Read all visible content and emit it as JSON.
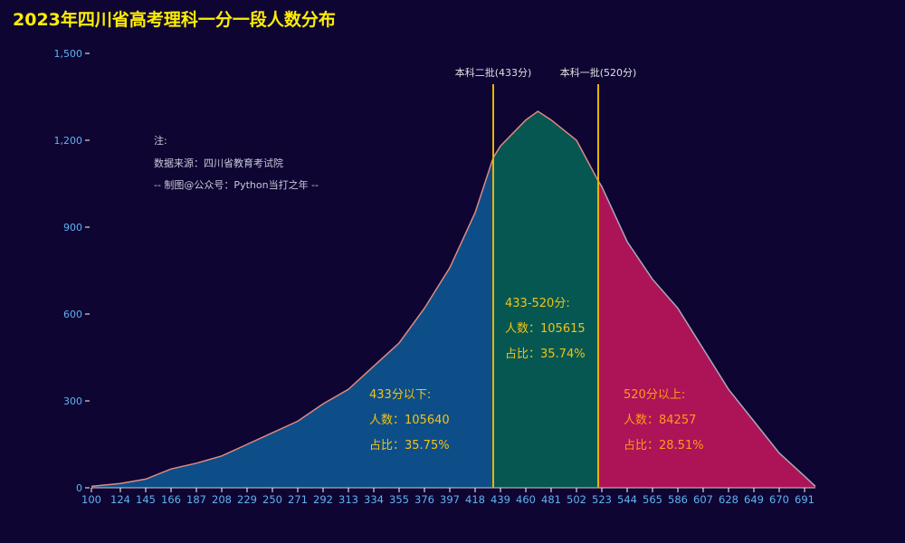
{
  "title": "2023年四川省高考理科一分一段人数分布",
  "notes": [
    "注:",
    "数据来源：四川省教育考试院",
    "-- 制图@公众号：Python当打之年 --"
  ],
  "chart_data": {
    "type": "area",
    "x": [
      100,
      124,
      145,
      166,
      187,
      208,
      229,
      250,
      271,
      292,
      313,
      334,
      355,
      376,
      397,
      418,
      433,
      439,
      460,
      470,
      481,
      502,
      520,
      523,
      544,
      565,
      586,
      607,
      628,
      649,
      670,
      691,
      700
    ],
    "values": [
      5,
      15,
      30,
      65,
      85,
      110,
      150,
      190,
      230,
      290,
      340,
      420,
      500,
      620,
      760,
      950,
      1140,
      1180,
      1270,
      1300,
      1270,
      1200,
      1060,
      1040,
      850,
      720,
      620,
      480,
      340,
      230,
      120,
      40,
      5
    ],
    "xticks": [
      "100",
      "124",
      "145",
      "166",
      "187",
      "208",
      "229",
      "250",
      "271",
      "292",
      "313",
      "334",
      "355",
      "376",
      "397",
      "418",
      "439",
      "460",
      "481",
      "502",
      "523",
      "544",
      "565",
      "586",
      "607",
      "628",
      "649",
      "670",
      "691"
    ],
    "yticks": [
      "0",
      "300",
      "600",
      "900",
      "1,200",
      "1,500"
    ],
    "yticks_values": [
      0,
      300,
      600,
      900,
      1200,
      1500
    ],
    "ylim": [
      0,
      1500
    ],
    "xlim": [
      100,
      700
    ],
    "grid": false,
    "mark_lines": [
      {
        "x": 433,
        "label": "本科二批(433分)"
      },
      {
        "x": 520,
        "label": "本科一批(520分)"
      }
    ],
    "regions": [
      {
        "from": 100,
        "to": 433,
        "color": "#0d4e88",
        "line": "#e08a80",
        "lines": [
          "433分以下:",
          "人数：105640",
          "占比：35.75%"
        ],
        "text_color": "#f2c318"
      },
      {
        "from": 433,
        "to": 520,
        "color": "#065751",
        "line": "#e08a80",
        "lines": [
          "433-520分:",
          "人数：105615",
          "占比：35.74%"
        ],
        "text_color": "#f2c318"
      },
      {
        "from": 520,
        "to": 700,
        "color": "#ad1457",
        "line": "#a8a8b8",
        "lines": [
          "520分以上:",
          "人数：84257",
          "占比：28.51%"
        ],
        "text_color": "#ff9a1a"
      }
    ],
    "markline_color": "#e8b400"
  }
}
